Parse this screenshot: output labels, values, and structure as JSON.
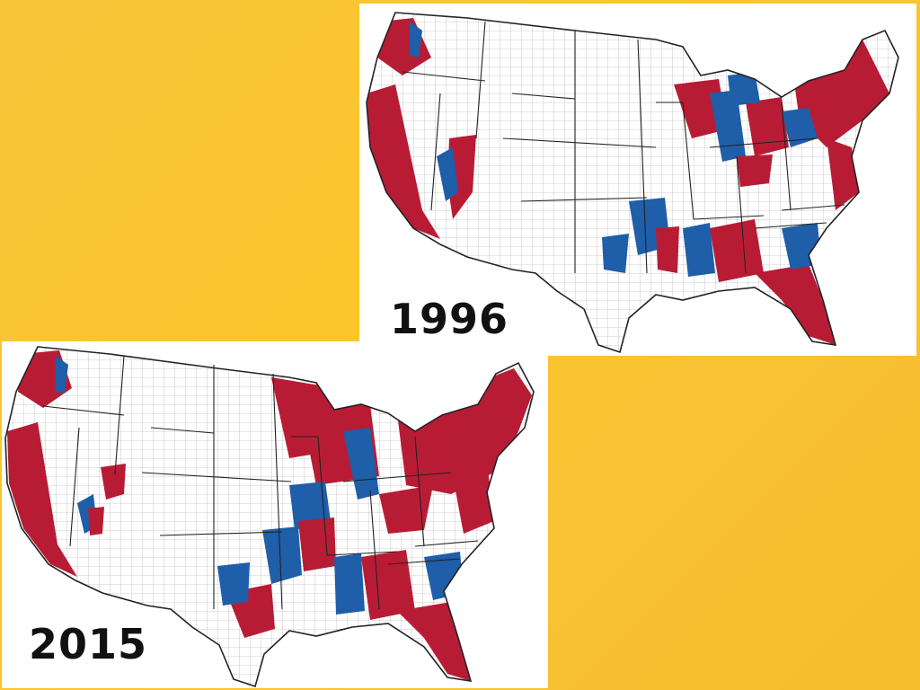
{
  "maps": [
    {
      "year_label": "1996",
      "colors": {
        "republican": "#b81c35",
        "democrat": "#1f5ea8",
        "land": "#ffffff",
        "border": "#222222",
        "county_line": "#9a9a9a"
      }
    },
    {
      "year_label": "2015",
      "colors": {
        "republican": "#b81c35",
        "democrat": "#1f5ea8",
        "land": "#ffffff",
        "border": "#222222",
        "county_line": "#9a9a9a"
      }
    }
  ]
}
